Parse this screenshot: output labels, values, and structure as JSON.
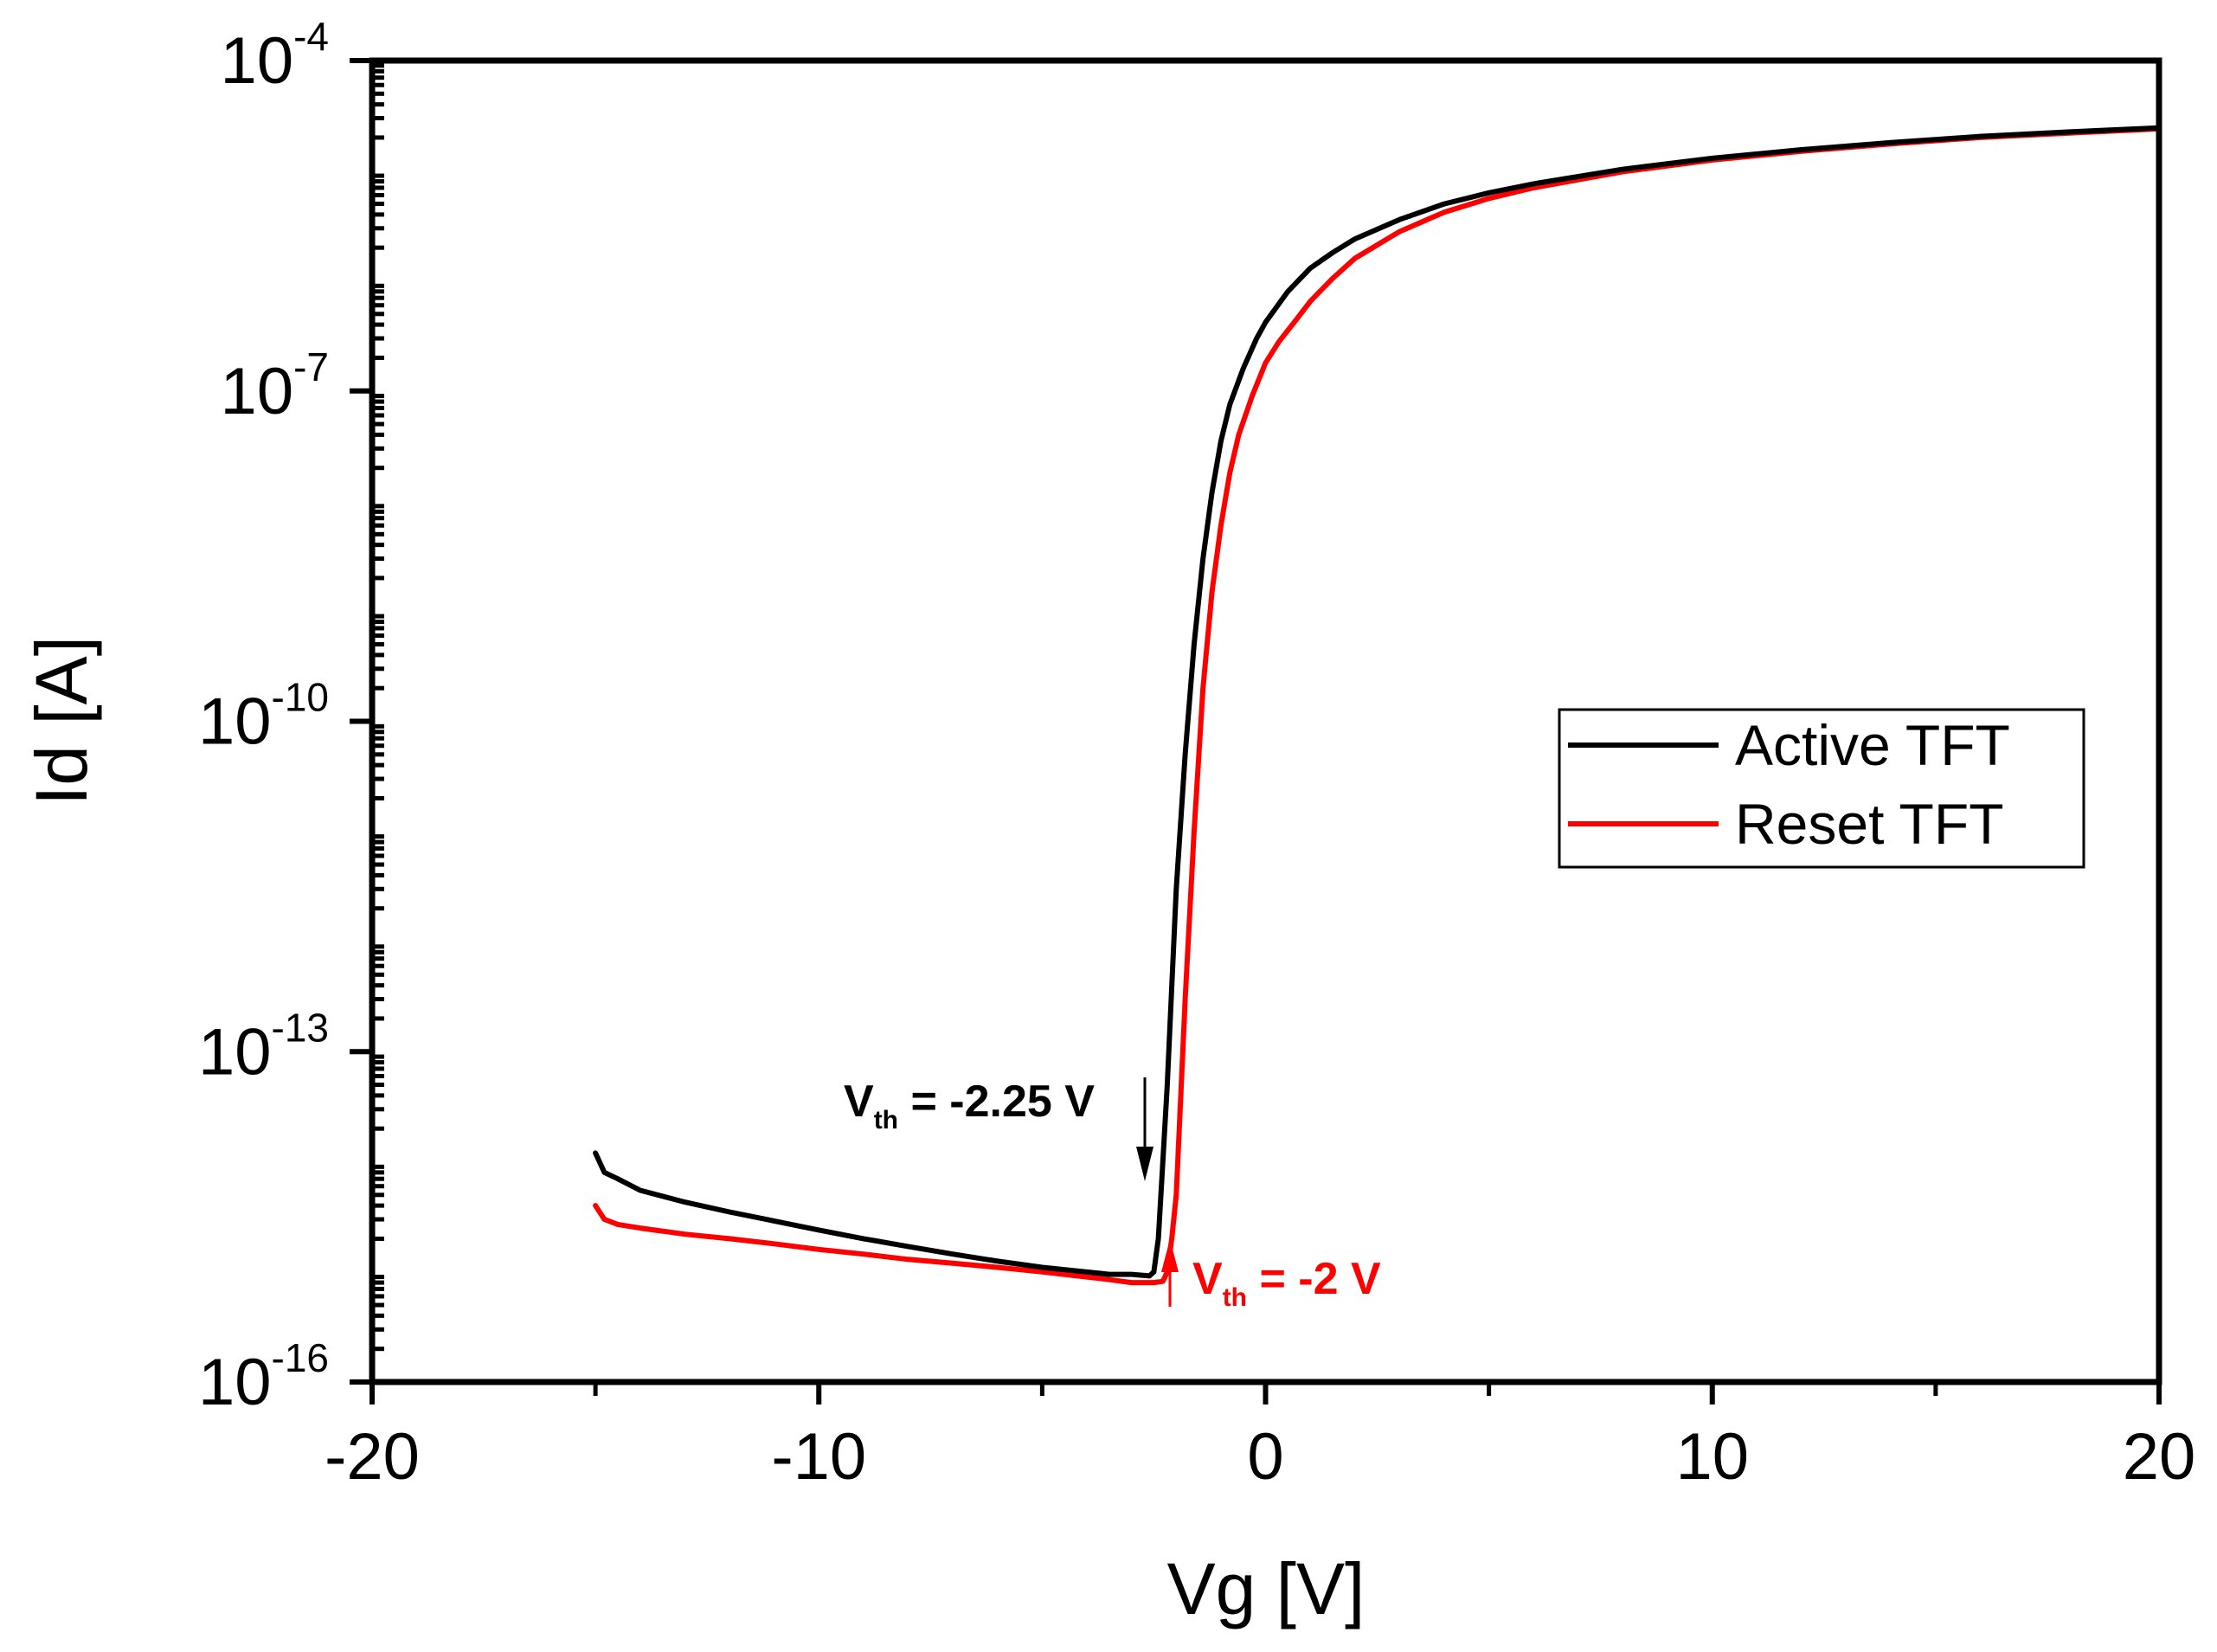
{
  "chart_data": {
    "type": "line",
    "title": "",
    "xlabel": "Vg [V]",
    "ylabel": "Id [A]",
    "xlim": [
      -20,
      20
    ],
    "ylim": [
      1e-16,
      0.0001
    ],
    "yscale": "log",
    "grid": false,
    "legend_position": "right-middle",
    "x_ticks": [
      {
        "value": -20,
        "label": "-20"
      },
      {
        "value": -10,
        "label": "-10"
      },
      {
        "value": 0,
        "label": "0"
      },
      {
        "value": 10,
        "label": "10"
      },
      {
        "value": 20,
        "label": "20"
      }
    ],
    "y_ticks": [
      {
        "value": 0.0001,
        "base": "10",
        "exp": "-4"
      },
      {
        "value": 1e-07,
        "base": "10",
        "exp": "-7"
      },
      {
        "value": 1e-10,
        "base": "10",
        "exp": "-10"
      },
      {
        "value": 1e-13,
        "base": "10",
        "exp": "-13"
      },
      {
        "value": 1e-16,
        "base": "10",
        "exp": "-16"
      }
    ],
    "series": [
      {
        "name": "Active TFT",
        "color": "#000000",
        "x": [
          -15,
          -14.8,
          -14.5,
          -14,
          -13,
          -12,
          -11,
          -10,
          -9,
          -8,
          -7,
          -6,
          -5,
          -4,
          -3.5,
          -3,
          -2.6,
          -2.5,
          -2.4,
          -2.3,
          -2.2,
          -2,
          -1.8,
          -1.6,
          -1.4,
          -1.2,
          -1,
          -0.8,
          -0.5,
          -0.2,
          0,
          0.5,
          1,
          1.5,
          2,
          3,
          4,
          5,
          6,
          8,
          10,
          12,
          14,
          16,
          18,
          20
        ],
        "y": [
          1.2e-14,
          8e-15,
          7e-15,
          5.5e-15,
          4.3e-15,
          3.5e-15,
          2.9e-15,
          2.4e-15,
          2e-15,
          1.7e-15,
          1.45e-15,
          1.25e-15,
          1.1e-15,
          1e-15,
          9.5e-16,
          9.5e-16,
          9.2e-16,
          1e-15,
          2e-15,
          1e-14,
          5e-14,
          3e-12,
          5e-11,
          5e-10,
          3e-09,
          1.2e-08,
          3.5e-08,
          7.5e-08,
          1.6e-07,
          3e-07,
          4.2e-07,
          8e-07,
          1.3e-06,
          1.8e-06,
          2.4e-06,
          3.6e-06,
          5e-06,
          6.3e-06,
          7.6e-06,
          1.03e-05,
          1.3e-05,
          1.55e-05,
          1.8e-05,
          2.05e-05,
          2.25e-05,
          2.45e-05
        ]
      },
      {
        "name": "Reset TFT",
        "color": "#ff0000",
        "x": [
          -15,
          -14.8,
          -14.5,
          -14,
          -13,
          -12,
          -11,
          -10,
          -9,
          -8,
          -7,
          -6,
          -5,
          -4,
          -3.5,
          -3,
          -2.5,
          -2.3,
          -2.2,
          -2.1,
          -2,
          -1.8,
          -1.6,
          -1.4,
          -1.2,
          -1,
          -0.8,
          -0.6,
          -0.3,
          0,
          0.3,
          0.7,
          1,
          1.5,
          2,
          3,
          4,
          5,
          6,
          8,
          10,
          12,
          14,
          16,
          18,
          20
        ],
        "y": [
          4e-15,
          3e-15,
          2.7e-15,
          2.5e-15,
          2.2e-15,
          2e-15,
          1.8e-15,
          1.6e-15,
          1.45e-15,
          1.3e-15,
          1.2e-15,
          1.1e-15,
          1e-15,
          9e-16,
          8.5e-16,
          8e-16,
          8e-16,
          8.2e-16,
          1e-15,
          2e-15,
          5e-15,
          3e-13,
          1e-11,
          2e-10,
          1.5e-09,
          6e-09,
          1.8e-08,
          4e-08,
          9e-08,
          1.8e-07,
          2.8e-07,
          4.5e-07,
          6.5e-07,
          1.05e-06,
          1.6e-06,
          2.8e-06,
          4.2e-06,
          5.6e-06,
          7e-06,
          9.8e-06,
          1.25e-05,
          1.5e-05,
          1.75e-05,
          2e-05,
          2.2e-05,
          2.4e-05
        ]
      }
    ],
    "annotations": [
      {
        "text_main": "V",
        "text_sub": "th",
        "text_rest": " = -2.25 V",
        "color": "#000000",
        "at_x": -2.25
      },
      {
        "text_main": "V",
        "text_sub": "th",
        "text_rest": " = -2 V",
        "color": "#ff0000",
        "at_x": -2
      }
    ]
  }
}
